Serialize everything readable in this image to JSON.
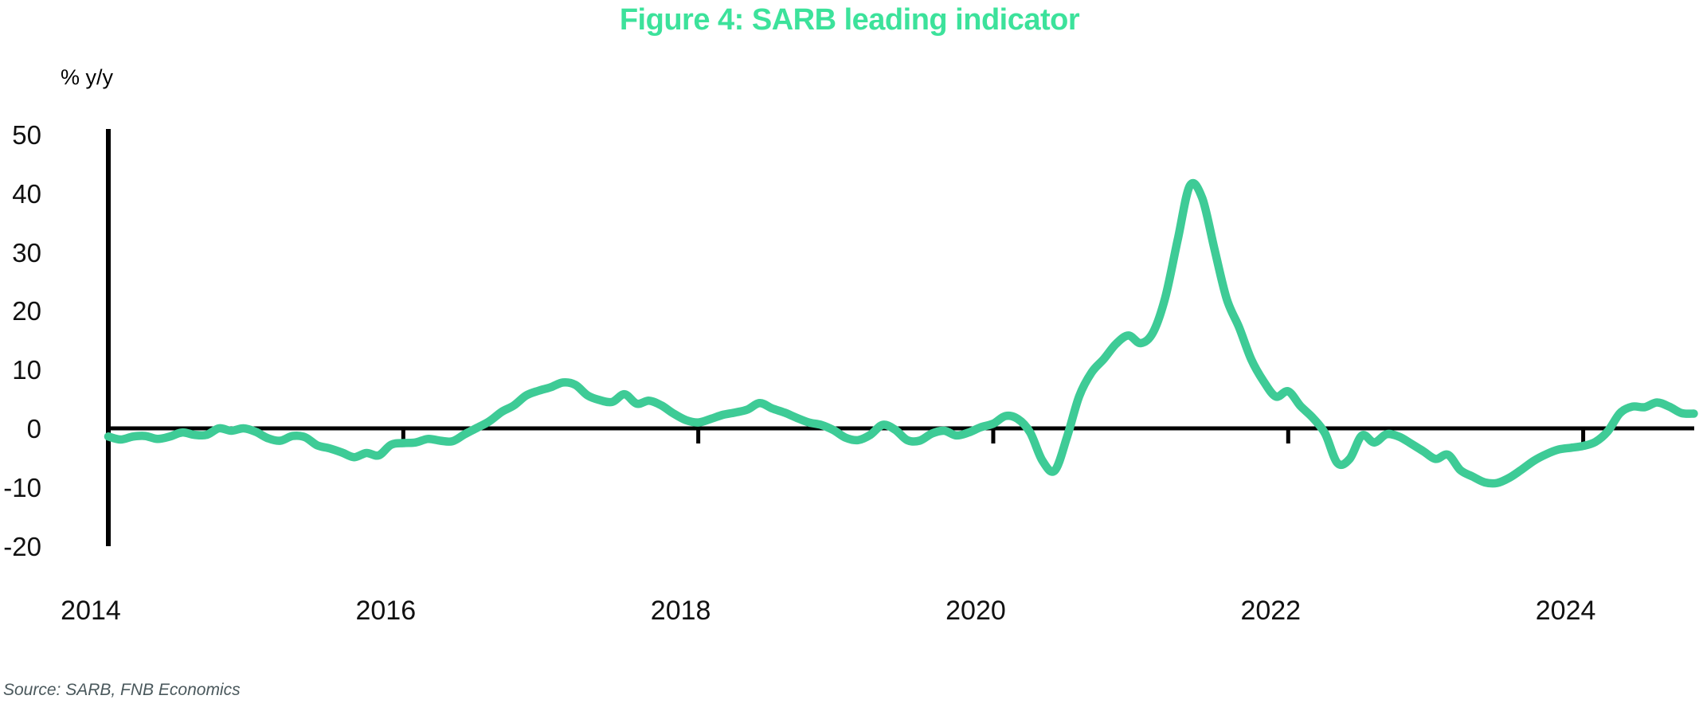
{
  "figure": {
    "title": "Figure 4: SARB leading indicator",
    "y_axis_unit": "% y/y",
    "source_note": "Source: SARB, FNB Economics"
  },
  "colors": {
    "title": "#3ce29b",
    "line": "#3ecb96",
    "axis": "#000000",
    "tick_label": "#111111",
    "source_text": "#4a585c",
    "background": "#ffffff"
  },
  "chart_data": {
    "type": "line",
    "title": "Figure 4: SARB leading indicator",
    "xlabel": "",
    "ylabel": "% y/y",
    "ylim": [
      -20,
      50
    ],
    "yticks": [
      50,
      40,
      30,
      20,
      10,
      0,
      -10,
      -20
    ],
    "xticks": [
      "2014",
      "2016",
      "2018",
      "2020",
      "2022",
      "2024"
    ],
    "grid": false,
    "legend": "none",
    "series": [
      {
        "name": "SARB leading indicator, % y/y",
        "start": "2014-01",
        "frequency": "monthly",
        "values": [
          -1.4,
          -1.9,
          -1.4,
          -1.3,
          -1.8,
          -1.4,
          -0.7,
          -1.1,
          -1.1,
          0.0,
          -0.4,
          0.0,
          -0.6,
          -1.7,
          -2.1,
          -1.3,
          -1.5,
          -2.9,
          -3.4,
          -4.1,
          -4.9,
          -4.2,
          -4.6,
          -2.8,
          -2.5,
          -2.4,
          -1.8,
          -2.1,
          -2.2,
          -1.0,
          0.1,
          1.2,
          2.8,
          3.9,
          5.6,
          6.4,
          7.0,
          7.8,
          7.4,
          5.6,
          4.8,
          4.5,
          5.8,
          4.2,
          4.7,
          3.9,
          2.5,
          1.4,
          1.0,
          1.6,
          2.3,
          2.7,
          3.2,
          4.3,
          3.4,
          2.7,
          1.8,
          1.0,
          0.6,
          -0.3,
          -1.6,
          -2.0,
          -1.1,
          0.6,
          -0.2,
          -2.0,
          -2.1,
          -0.9,
          -0.4,
          -1.2,
          -0.7,
          0.2,
          0.8,
          2.1,
          1.6,
          -0.7,
          -5.5,
          -7.2,
          -1.5,
          5.5,
          9.5,
          11.8,
          14.4,
          15.8,
          14.5,
          16.3,
          22.3,
          32.0,
          41.3,
          39.2,
          30.5,
          22.0,
          17.2,
          11.7,
          8.0,
          5.4,
          6.3,
          3.8,
          1.8,
          -0.9,
          -5.9,
          -5.2,
          -1.2,
          -2.4,
          -1.0,
          -1.4,
          -2.6,
          -3.9,
          -5.2,
          -4.5,
          -7.1,
          -8.2,
          -9.2,
          -9.3,
          -8.4,
          -7.0,
          -5.5,
          -4.4,
          -3.6,
          -3.3,
          -3.0,
          -2.3,
          -0.5,
          2.6,
          3.7,
          3.6,
          4.4,
          3.7,
          2.6,
          2.5
        ]
      }
    ]
  }
}
